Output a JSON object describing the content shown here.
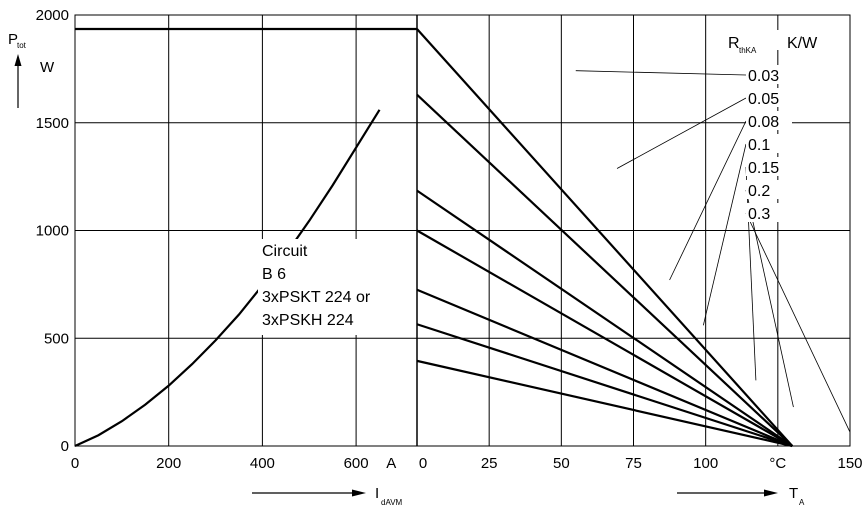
{
  "chart_data": [
    {
      "type": "line",
      "panel": "left",
      "x": [
        0,
        50,
        100,
        150,
        200,
        250,
        300,
        350,
        400,
        450,
        500,
        550,
        600,
        650
      ],
      "series": [
        {
          "values": [
            0,
            50,
            115,
            192,
            280,
            380,
            490,
            610,
            745,
            890,
            1045,
            1210,
            1385,
            1560
          ]
        },
        {
          "x": [
            0,
            730
          ],
          "values": [
            1935,
            1935
          ]
        }
      ],
      "xlim": [
        0,
        730
      ],
      "ylim": [
        0,
        2000
      ],
      "xticks": [
        "0",
        "200",
        "400",
        "600",
        "A"
      ],
      "yticks": [
        "0",
        "500",
        "1000",
        "1500",
        "2000"
      ],
      "ylabel_main": "P",
      "ylabel_sub": "tot",
      "ylabel_unit": "W",
      "xlabel_main": "I",
      "xlabel_sub": "dAVM",
      "annotation": [
        "Circuit",
        "B 6",
        "3xPSKT 224 or",
        "3xPSKH 224"
      ],
      "grid": true
    },
    {
      "type": "line",
      "panel": "right",
      "xlim": [
        0,
        150
      ],
      "ylim": [
        0,
        2000
      ],
      "xticks": [
        "0",
        "25",
        "50",
        "75",
        "100",
        "°C",
        "150"
      ],
      "xlabel_main": "T",
      "xlabel_sub": "A",
      "legend_title_main": "R",
      "legend_title_sub": "thKA",
      "legend_title_unit": "K/W",
      "series": [
        {
          "name": "0.03",
          "x": [
            0,
            130
          ],
          "values": [
            1935,
            0
          ]
        },
        {
          "name": "0.05",
          "x": [
            0,
            130
          ],
          "values": [
            1630,
            0
          ]
        },
        {
          "name": "0.08",
          "x": [
            0,
            130
          ],
          "values": [
            1185,
            0
          ]
        },
        {
          "name": "0.1",
          "x": [
            0,
            130
          ],
          "values": [
            1000,
            0
          ]
        },
        {
          "name": "0.15",
          "x": [
            0,
            130
          ],
          "values": [
            725,
            0
          ]
        },
        {
          "name": "0.2",
          "x": [
            0,
            130
          ],
          "values": [
            565,
            0
          ]
        },
        {
          "name": "0.3",
          "x": [
            0,
            130
          ],
          "values": [
            395,
            0
          ]
        }
      ],
      "grid": true
    }
  ]
}
